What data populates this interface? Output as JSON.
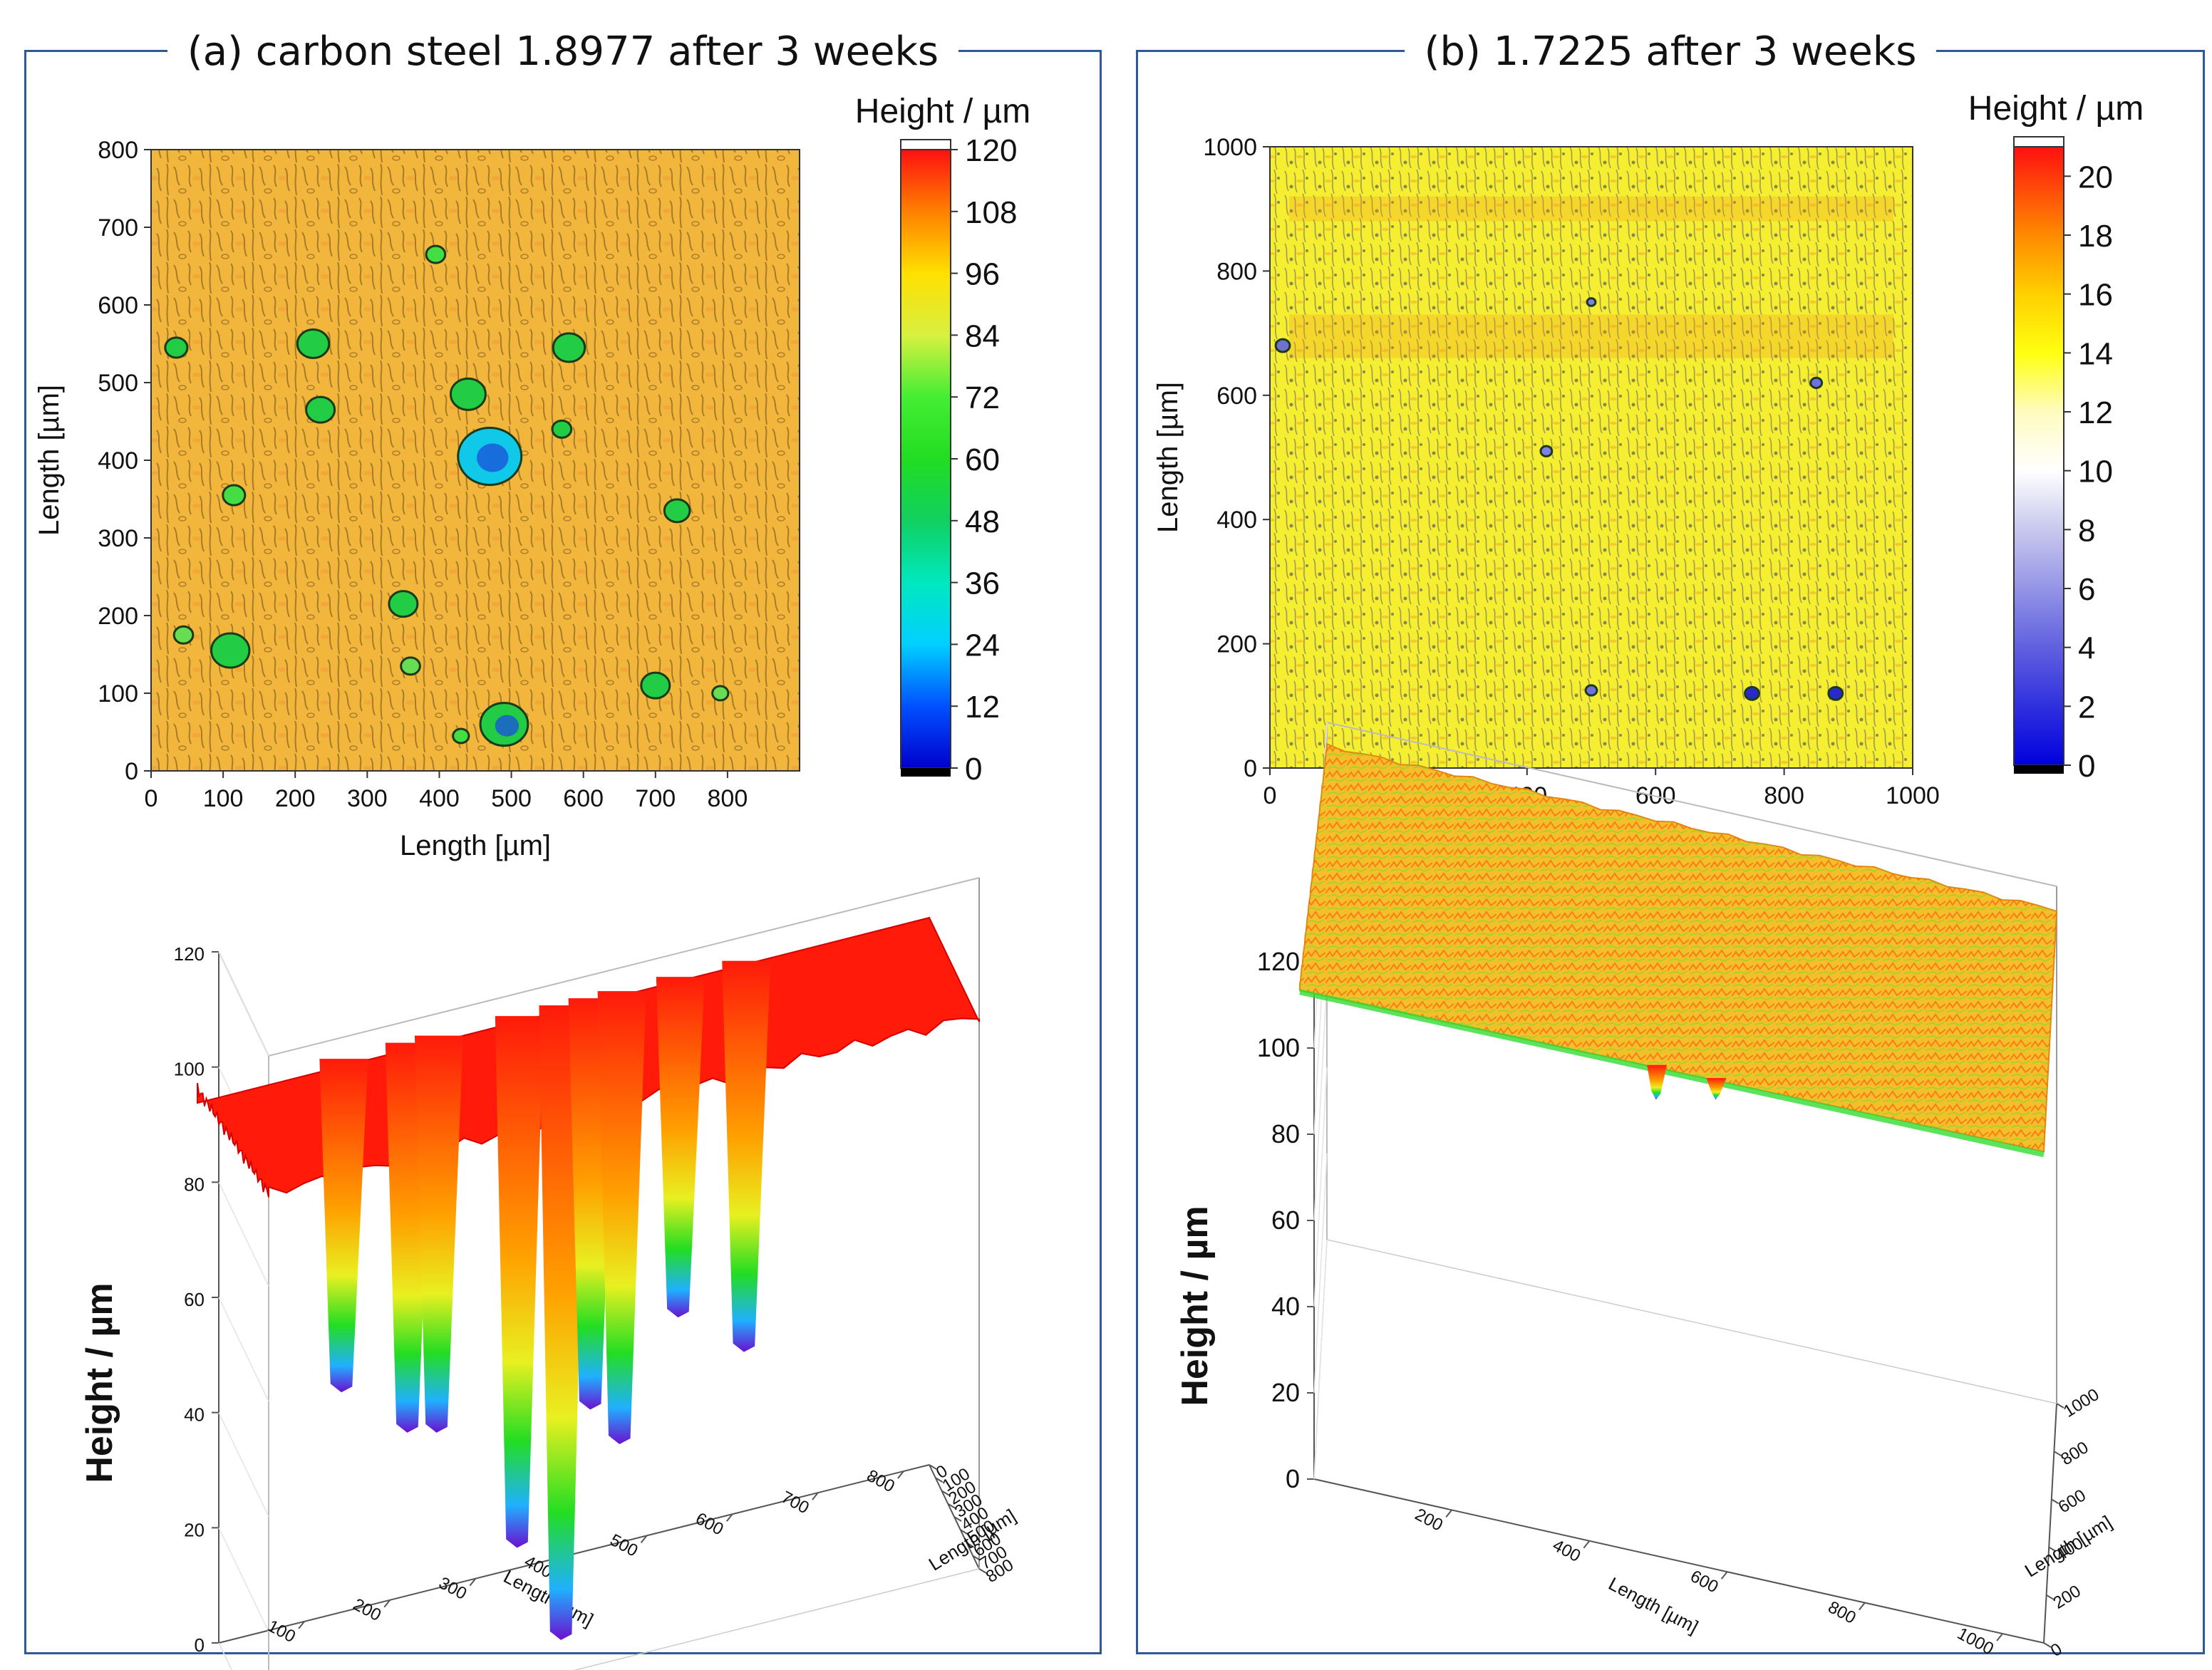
{
  "panels": [
    {
      "title": "(a) carbon steel 1.8977 after 3 weeks",
      "colorbar": {
        "label": "Height / µm",
        "min": 0,
        "max": 120,
        "ticks": [
          "0",
          "12",
          "24",
          "36",
          "48",
          "60",
          "72",
          "84",
          "96",
          "108",
          "120"
        ],
        "stops": [
          {
            "v": 0,
            "c": "#0000cc"
          },
          {
            "v": 12,
            "c": "#0050ff"
          },
          {
            "v": 24,
            "c": "#00d0ff"
          },
          {
            "v": 36,
            "c": "#00e8c0"
          },
          {
            "v": 48,
            "c": "#10d060"
          },
          {
            "v": 60,
            "c": "#22dd22"
          },
          {
            "v": 72,
            "c": "#44ee33"
          },
          {
            "v": 84,
            "c": "#d8f040"
          },
          {
            "v": 96,
            "c": "#ffe000"
          },
          {
            "v": 108,
            "c": "#ff8000"
          },
          {
            "v": 120,
            "c": "#ff1010"
          }
        ]
      },
      "map": {
        "xlabel": "Length [µm]",
        "ylabel": "Length [µm]",
        "xlim": [
          0,
          900
        ],
        "ylim": [
          0,
          800
        ],
        "xticks": [
          "0",
          "100",
          "200",
          "300",
          "400",
          "500",
          "600",
          "700",
          "800"
        ],
        "yticks": [
          "0",
          "100",
          "200",
          "300",
          "400",
          "500",
          "600",
          "700",
          "800"
        ],
        "base_color": "#f2b63c",
        "pits": [
          {
            "x": 35,
            "y": 545,
            "r": 14,
            "c": "#22cc44"
          },
          {
            "x": 225,
            "y": 550,
            "r": 20,
            "c": "#22cc44"
          },
          {
            "x": 235,
            "y": 465,
            "r": 18,
            "c": "#22cc44"
          },
          {
            "x": 440,
            "y": 485,
            "r": 22,
            "c": "#22cc44"
          },
          {
            "x": 470,
            "y": 405,
            "r": 40,
            "c": "#10c8e8"
          },
          {
            "x": 580,
            "y": 545,
            "r": 20,
            "c": "#22cc44"
          },
          {
            "x": 570,
            "y": 440,
            "r": 12,
            "c": "#22cc44"
          },
          {
            "x": 115,
            "y": 355,
            "r": 14,
            "c": "#44dd44"
          },
          {
            "x": 730,
            "y": 335,
            "r": 16,
            "c": "#22cc44"
          },
          {
            "x": 350,
            "y": 215,
            "r": 18,
            "c": "#22cc44"
          },
          {
            "x": 360,
            "y": 135,
            "r": 12,
            "c": "#66dd55"
          },
          {
            "x": 110,
            "y": 155,
            "r": 24,
            "c": "#22cc44"
          },
          {
            "x": 45,
            "y": 175,
            "r": 12,
            "c": "#66dd55"
          },
          {
            "x": 700,
            "y": 110,
            "r": 18,
            "c": "#22cc44"
          },
          {
            "x": 790,
            "y": 100,
            "r": 10,
            "c": "#66dd55"
          },
          {
            "x": 490,
            "y": 60,
            "r": 30,
            "c": "#22cc44"
          },
          {
            "x": 430,
            "y": 45,
            "r": 10,
            "c": "#44dd44"
          },
          {
            "x": 395,
            "y": 665,
            "r": 12,
            "c": "#44dd44"
          }
        ]
      },
      "surface": {
        "zlabel": "Height / µm",
        "zlim": [
          0,
          120
        ],
        "zticks": [
          "0",
          "20",
          "40",
          "60",
          "80",
          "100",
          "120"
        ],
        "xlabel": "Length [µm]",
        "ylabel": "Length [µm]",
        "xticks": [
          "100",
          "200",
          "300",
          "400",
          "500",
          "600",
          "700",
          "800"
        ],
        "yticks": [
          "0",
          "100",
          "200",
          "300",
          "400",
          "500",
          "600",
          "700",
          "800"
        ],
        "plateau": 95,
        "plateau_color": "#ff1a0a",
        "pits": [
          {
            "rx": 0.2,
            "depth": 45
          },
          {
            "rx": 0.29,
            "depth": 38
          },
          {
            "rx": 0.33,
            "depth": 38
          },
          {
            "rx": 0.44,
            "depth": 18
          },
          {
            "rx": 0.5,
            "depth": 2
          },
          {
            "rx": 0.54,
            "depth": 42
          },
          {
            "rx": 0.58,
            "depth": 36
          },
          {
            "rx": 0.66,
            "depth": 58
          },
          {
            "rx": 0.75,
            "depth": 52
          }
        ]
      }
    },
    {
      "title": "(b) 1.7225 after 3 weeks",
      "colorbar": {
        "label": "Height / µm",
        "min": 0,
        "max": 21,
        "ticks": [
          "0",
          "2",
          "4",
          "6",
          "8",
          "10",
          "12",
          "14",
          "16",
          "18",
          "20"
        ],
        "stops": [
          {
            "v": 0,
            "c": "#0000dd"
          },
          {
            "v": 4,
            "c": "#6060e0"
          },
          {
            "v": 8,
            "c": "#c8c8ee"
          },
          {
            "v": 10,
            "c": "#ffffff"
          },
          {
            "v": 12,
            "c": "#fffbc0"
          },
          {
            "v": 14,
            "c": "#ffff10"
          },
          {
            "v": 16,
            "c": "#ffd000"
          },
          {
            "v": 18,
            "c": "#ff8a00"
          },
          {
            "v": 21,
            "c": "#ff1010"
          }
        ]
      },
      "map": {
        "xlabel": "Length [µm]",
        "ylabel": "Length [µm]",
        "xlim": [
          0,
          1000
        ],
        "ylim": [
          0,
          1000
        ],
        "xticks": [
          "0",
          "200",
          "400",
          "600",
          "800",
          "1000"
        ],
        "yticks": [
          "0",
          "200",
          "400",
          "600",
          "800",
          "1000"
        ],
        "base_color": "#f6ee30",
        "pits": [
          {
            "x": 750,
            "y": 120,
            "r": 10,
            "c": "#2a2acc"
          },
          {
            "x": 880,
            "y": 120,
            "r": 10,
            "c": "#2a2acc"
          },
          {
            "x": 500,
            "y": 125,
            "r": 8,
            "c": "#7070e0"
          },
          {
            "x": 850,
            "y": 620,
            "r": 8,
            "c": "#7070e0"
          },
          {
            "x": 430,
            "y": 510,
            "r": 8,
            "c": "#8080e0"
          },
          {
            "x": 500,
            "y": 750,
            "r": 6,
            "c": "#8080e0"
          },
          {
            "x": 20,
            "y": 680,
            "r": 10,
            "c": "#7070d0"
          }
        ]
      },
      "surface": {
        "zlabel": "Height / µm",
        "zlim": [
          0,
          120
        ],
        "zticks": [
          "0",
          "20",
          "40",
          "60",
          "80",
          "100",
          "120"
        ],
        "xlabel": "Length [µm]",
        "ylabel": "Length [µm]",
        "xticks": [
          "200",
          "400",
          "600",
          "800",
          "1000"
        ],
        "yticks": [
          "0",
          "200",
          "400",
          "600",
          "800",
          "1000"
        ],
        "plateau": 114,
        "plateau_color": "#f3c02a",
        "pits": [
          {
            "rx": 0.48,
            "depth": 90
          },
          {
            "rx": 0.56,
            "depth": 90
          }
        ]
      }
    }
  ]
}
